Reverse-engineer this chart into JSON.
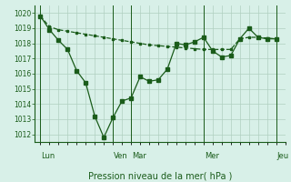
{
  "title": "",
  "xlabel": "Pression niveau de la mer( hPa )",
  "bg_color": "#d8f0e8",
  "grid_color": "#b0d0c0",
  "line_color": "#1a5c1a",
  "ylim": [
    1011.5,
    1020.5
  ],
  "yticks": [
    1012,
    1013,
    1014,
    1015,
    1016,
    1017,
    1018,
    1019,
    1020
  ],
  "xlim": [
    -0.3,
    13.5
  ],
  "day_lines_x": [
    0,
    4,
    5,
    9,
    13
  ],
  "day_labels": [
    [
      "Lun",
      0.05
    ],
    [
      "Ven",
      4.05
    ],
    [
      "Mar",
      5.05
    ],
    [
      "Mer",
      9.05
    ],
    [
      "Jeu",
      13.05
    ]
  ],
  "series1_x": [
    0,
    0.5,
    1,
    1.5,
    2,
    2.5,
    3,
    3.5,
    4,
    4.5,
    5,
    5.5,
    6,
    6.5,
    7,
    7.5,
    8,
    8.5,
    9,
    9.5,
    10,
    10.5,
    11,
    11.5,
    12,
    12.5,
    13
  ],
  "series1_y": [
    1019.8,
    1018.9,
    1018.2,
    1017.6,
    1016.2,
    1015.4,
    1013.2,
    1011.8,
    1013.1,
    1014.2,
    1014.4,
    1015.8,
    1015.5,
    1015.6,
    1016.3,
    1018.0,
    1017.9,
    1018.1,
    1018.4,
    1017.5,
    1017.1,
    1017.2,
    1018.3,
    1019.0,
    1018.4,
    1018.3,
    1018.3
  ],
  "series2_x": [
    0,
    0.5,
    1,
    1.5,
    2,
    2.5,
    3,
    3.5,
    4,
    4.5,
    5,
    5.5,
    6,
    6.5,
    7,
    7.5,
    8,
    8.5,
    9,
    9.5,
    10,
    10.5,
    11,
    11.5,
    12,
    12.5,
    13
  ],
  "series2_y": [
    1019.8,
    1019.1,
    1018.9,
    1018.8,
    1018.7,
    1018.6,
    1018.5,
    1018.4,
    1018.3,
    1018.2,
    1018.1,
    1018.0,
    1017.9,
    1017.85,
    1017.8,
    1017.75,
    1017.7,
    1017.65,
    1017.6,
    1017.6,
    1017.6,
    1017.6,
    1018.3,
    1018.4,
    1018.4,
    1018.35,
    1018.3
  ]
}
